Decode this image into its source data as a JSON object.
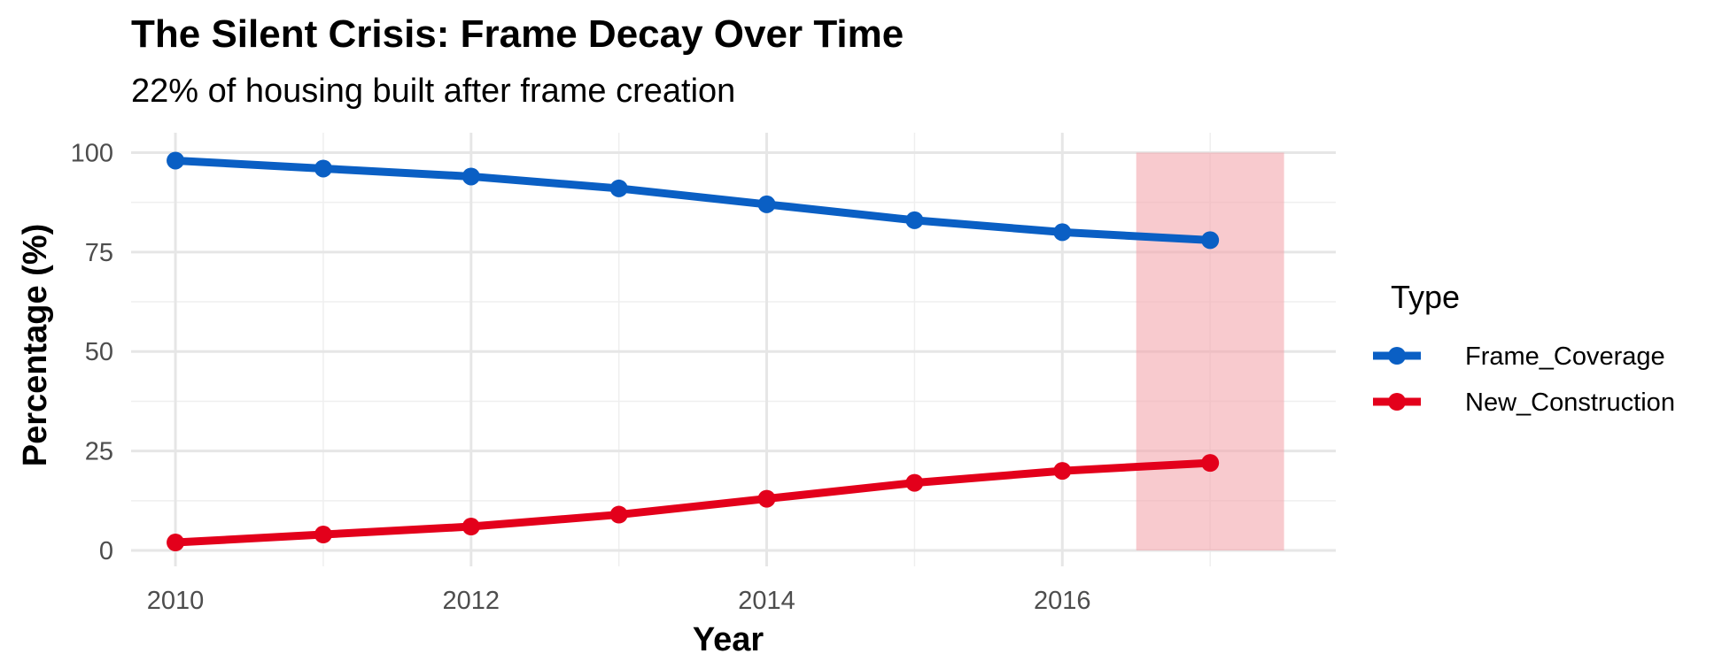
{
  "chart_data": {
    "type": "line",
    "title": "The Silent Crisis: Frame Decay Over Time",
    "subtitle": "22% of housing built after frame creation",
    "xlabel": "Year",
    "ylabel": "Percentage (%)",
    "x": [
      2010,
      2011,
      2012,
      2013,
      2014,
      2015,
      2016,
      2017
    ],
    "xlim": [
      2009.7,
      2017.85
    ],
    "ylim": [
      -4,
      105
    ],
    "x_ticks": [
      2010,
      2012,
      2014,
      2016
    ],
    "y_ticks": [
      0,
      25,
      50,
      75,
      100
    ],
    "grid": true,
    "highlight": {
      "x_range": [
        2016.5,
        2017.5
      ],
      "y_range": [
        0,
        100
      ],
      "color": "#f4a6ad"
    },
    "legend": {
      "title": "Type",
      "position": "right"
    },
    "series": [
      {
        "name": "Frame_Coverage",
        "color": "#0a5fc4",
        "values": [
          98,
          96,
          94,
          91,
          87,
          83,
          80,
          78
        ]
      },
      {
        "name": "New_Construction",
        "color": "#e3001b",
        "values": [
          2,
          4,
          6,
          9,
          13,
          17,
          20,
          22
        ]
      }
    ]
  }
}
